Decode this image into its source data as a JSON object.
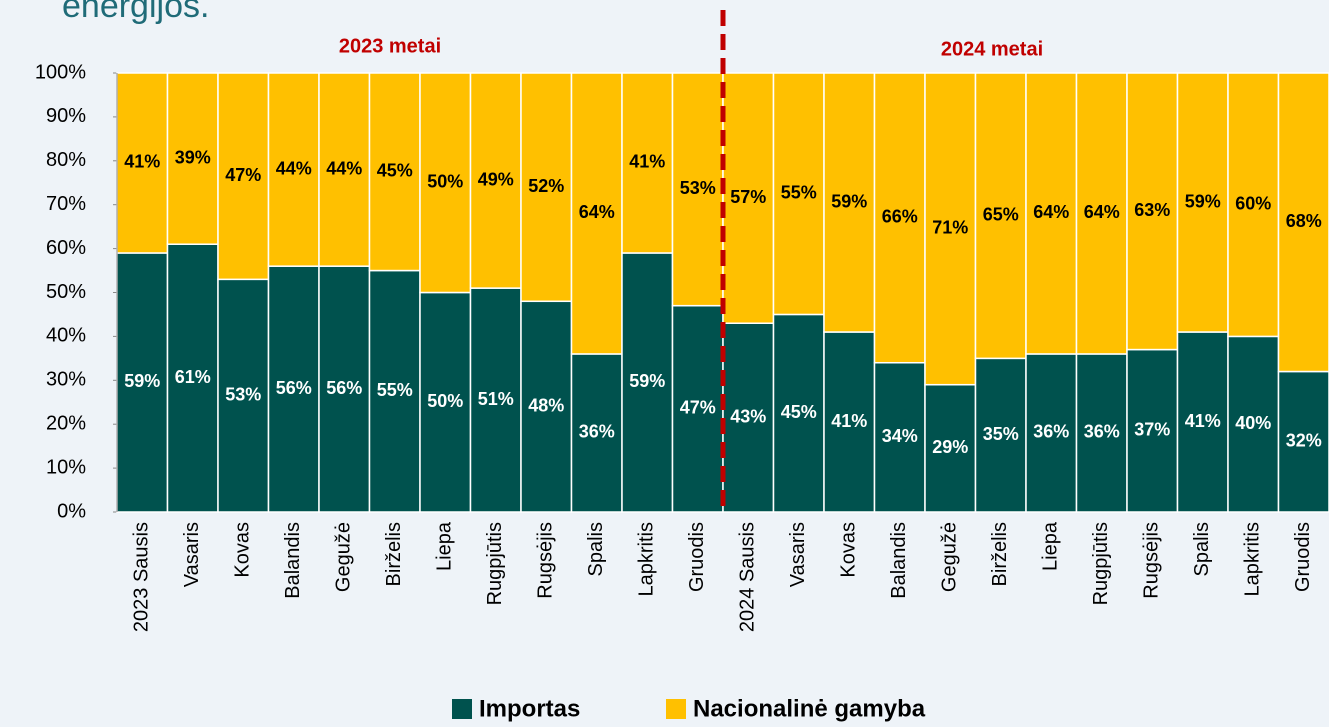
{
  "chart_data": {
    "type": "stacked_bar",
    "title": "energijos.",
    "annotations": [
      "2023 metai",
      "2024 metai"
    ],
    "categories": [
      "2023 Sausis",
      "Vasaris",
      "Kovas",
      "Balandis",
      "Gegužė",
      "Birželis",
      "Liepa",
      "Rugpjūtis",
      "Rugsėjis",
      "Spalis",
      "Lapkritis",
      "Gruodis",
      "2024 Sausis",
      "Vasaris",
      "Kovas",
      "Balandis",
      "Gegužė",
      "Birželis",
      "Liepa",
      "Rugpjūtis",
      "Rugsėjis",
      "Spalis",
      "Lapkritis",
      "Gruodis"
    ],
    "series": [
      {
        "name": "Importas",
        "color": "#00524e",
        "values": [
          59,
          61,
          53,
          56,
          56,
          55,
          50,
          51,
          48,
          36,
          59,
          47,
          43,
          45,
          41,
          34,
          29,
          35,
          36,
          36,
          37,
          41,
          40,
          32
        ],
        "value_labels": [
          "59%",
          "61%",
          "53%",
          "56%",
          "56%",
          "55%",
          "50%",
          "51%",
          "48%",
          "36%",
          "59%",
          "47%",
          "43%",
          "45%",
          "41%",
          "34%",
          "29%",
          "35%",
          "36%",
          "36%",
          "37%",
          "41%",
          "40%",
          "32%"
        ]
      },
      {
        "name": "Nacionalinė gamyba",
        "color": "#ffc000",
        "values": [
          41,
          39,
          47,
          44,
          44,
          45,
          50,
          49,
          52,
          64,
          41,
          53,
          57,
          55,
          59,
          66,
          71,
          65,
          64,
          64,
          63,
          59,
          60,
          68
        ],
        "value_labels": [
          "41%",
          "39%",
          "47%",
          "44%",
          "44%",
          "45%",
          "50%",
          "49%",
          "52%",
          "64%",
          "41%",
          "53%",
          "57%",
          "55%",
          "59%",
          "66%",
          "71%",
          "65%",
          "64%",
          "64%",
          "63%",
          "59%",
          "60%",
          "68%"
        ]
      }
    ],
    "ylim": [
      0,
      100
    ],
    "yticks": [
      {
        "value": 0,
        "label": "0%"
      },
      {
        "value": 10,
        "label": "10%"
      },
      {
        "value": 20,
        "label": "20%"
      },
      {
        "value": 30,
        "label": "30%"
      },
      {
        "value": 40,
        "label": "40%"
      },
      {
        "value": 50,
        "label": "50%"
      },
      {
        "value": 60,
        "label": "60%"
      },
      {
        "value": 70,
        "label": "70%"
      },
      {
        "value": 80,
        "label": "80%"
      },
      {
        "value": 90,
        "label": "90%"
      },
      {
        "value": 100,
        "label": "100%"
      }
    ]
  }
}
